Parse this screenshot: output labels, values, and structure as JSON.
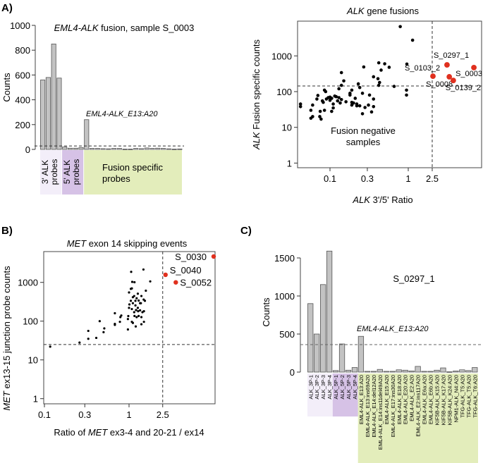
{
  "panels": {
    "a": "A)",
    "b": "B)",
    "c": "C)"
  },
  "colors": {
    "bar": "#c3c3c3",
    "bar_stroke": "#555555",
    "point": "#000000",
    "highlight": "#e0301e",
    "three_prime_block": "#f3eef9",
    "five_prime_block": "#d6c2e6",
    "fusion_block": "#e3edbb"
  },
  "chart_data": [
    {
      "id": "A_left",
      "type": "bar",
      "title_italic": "EML4-ALK",
      "title_rest": " fusion, sample S_0003",
      "ylabel": "Counts",
      "ylim": [
        0,
        1000
      ],
      "yticks": [
        0,
        200,
        400,
        600,
        800,
        1000
      ],
      "threshold": 28,
      "annotation": "EML4-ALK_E13:A20",
      "groups": [
        {
          "label_italic": "3' ALK",
          "label2": "probes",
          "count": 4
        },
        {
          "label_italic": "5' ALK",
          "label2": "probes",
          "count": 4
        },
        {
          "label1": "Fusion specific",
          "label2": "probes",
          "count": 18
        }
      ],
      "values": [
        560,
        580,
        850,
        575,
        20,
        10,
        10,
        15,
        240,
        8,
        8,
        6,
        5,
        8,
        8,
        3,
        3,
        8,
        6,
        12,
        8,
        10,
        8,
        5,
        3,
        4
      ]
    },
    {
      "id": "A_right",
      "type": "scatter",
      "title_italic": "ALK",
      "title_rest": " gene fusions",
      "xlabel_italic": "ALK",
      "xlabel_rest": " 3'/5' Ratio",
      "ylabel_italic": "ALK",
      "ylabel_rest": " Fusion specific counts",
      "xscale": "log",
      "yscale": "log",
      "xticks": [
        0.1,
        0.3,
        1,
        2.5
      ],
      "xtick_labels": [
        "0.1",
        "0.3",
        "1",
        "2.5"
      ],
      "yticks": [
        1,
        10,
        100,
        1000
      ],
      "ytick_labels": [
        "1",
        "10",
        "100",
        "1000"
      ],
      "xlim": [
        0.039,
        16.5
      ],
      "ylim": [
        0.7,
        9300
      ],
      "threshold_x": 2.5,
      "threshold_y": 144,
      "annotation_lines": [
        "Fusion negative",
        "samples"
      ],
      "highlighted": [
        {
          "label": "S_0103_2",
          "x": 2.57,
          "y": 270
        },
        {
          "label": "S_0297_1",
          "x": 4.4,
          "y": 560
        },
        {
          "label": "S_0008",
          "x": 4.8,
          "y": 260
        },
        {
          "label": "S_0139_2",
          "x": 5.6,
          "y": 205
        },
        {
          "label": "S_0003",
          "x": 12.3,
          "y": 470
        }
      ],
      "points": [
        [
          0.79,
          6600
        ],
        [
          1.18,
          2750
        ],
        [
          0.96,
          590
        ],
        [
          0.95,
          110
        ],
        [
          0.95,
          80
        ],
        [
          0.66,
          140
        ],
        [
          0.42,
          640
        ],
        [
          0.5,
          600
        ],
        [
          0.57,
          480
        ],
        [
          0.45,
          400
        ],
        [
          0.27,
          490
        ],
        [
          0.36,
          260
        ],
        [
          0.41,
          230
        ],
        [
          0.43,
          180
        ],
        [
          0.42,
          150
        ],
        [
          0.14,
          340
        ],
        [
          0.15,
          200
        ],
        [
          0.14,
          150
        ],
        [
          0.13,
          120
        ],
        [
          0.23,
          165
        ],
        [
          0.24,
          130
        ],
        [
          0.19,
          110
        ],
        [
          0.18,
          90
        ],
        [
          0.18,
          80
        ],
        [
          0.26,
          90
        ],
        [
          0.32,
          80
        ],
        [
          0.21,
          65
        ],
        [
          0.36,
          62
        ],
        [
          0.36,
          38
        ],
        [
          0.34,
          27
        ],
        [
          0.26,
          24
        ],
        [
          0.28,
          36
        ],
        [
          0.24,
          40
        ],
        [
          0.22,
          45
        ],
        [
          0.19,
          42
        ],
        [
          0.19,
          50
        ],
        [
          0.16,
          52
        ],
        [
          0.14,
          60
        ],
        [
          0.13,
          68
        ],
        [
          0.12,
          72
        ],
        [
          0.115,
          75
        ],
        [
          0.105,
          65
        ],
        [
          0.1,
          70
        ],
        [
          0.095,
          68
        ],
        [
          0.09,
          62
        ],
        [
          0.085,
          110
        ],
        [
          0.088,
          100
        ],
        [
          0.08,
          55
        ],
        [
          0.082,
          50
        ],
        [
          0.07,
          78
        ],
        [
          0.068,
          62
        ],
        [
          0.06,
          42
        ],
        [
          0.057,
          30
        ],
        [
          0.075,
          28
        ],
        [
          0.074,
          20
        ],
        [
          0.077,
          17
        ],
        [
          0.06,
          20
        ],
        [
          0.057,
          18
        ],
        [
          0.042,
          45
        ],
        [
          0.042,
          38
        ],
        [
          0.11,
          45
        ],
        [
          0.11,
          35
        ],
        [
          0.105,
          28
        ],
        [
          0.125,
          55
        ],
        [
          0.1,
          57
        ],
        [
          0.135,
          48
        ],
        [
          0.085,
          30
        ],
        [
          0.2,
          48
        ],
        [
          0.22,
          40
        ],
        [
          0.31,
          42
        ]
      ]
    },
    {
      "id": "B",
      "type": "scatter",
      "title_italic": "MET",
      "title_rest": " exon 14 skipping events",
      "xlabel_pre": "Ratio of ",
      "xlabel_italic": "MET",
      "xlabel_rest": " ex3-4 and 20-21 / ex14",
      "ylabel_italic": "MET",
      "ylabel_rest": " ex13-15 junction probe counts",
      "xscale": "log",
      "yscale": "log",
      "xticks": [
        0.1,
        0.3,
        1,
        2.5
      ],
      "xtick_labels": [
        "0.1",
        "0.3",
        "1",
        "2.5"
      ],
      "yticks": [
        1,
        10,
        100,
        1000
      ],
      "ytick_labels": [
        "1",
        "10",
        "100",
        "1000"
      ],
      "xlim": [
        0.098,
        10.4
      ],
      "ylim": [
        0.74,
        6200
      ],
      "threshold_x": 2.5,
      "threshold_y": 25,
      "highlighted": [
        {
          "label": "S_0030",
          "x": 10,
          "y": 4650
        },
        {
          "label": "S_0040",
          "x": 2.7,
          "y": 1570
        },
        {
          "label": "S_0052",
          "x": 3.57,
          "y": 1000
        }
      ],
      "points": [
        [
          0.117,
          22
        ],
        [
          0.26,
          28
        ],
        [
          0.33,
          56
        ],
        [
          0.33,
          35
        ],
        [
          0.41,
          37
        ],
        [
          0.45,
          100
        ],
        [
          0.51,
          65
        ],
        [
          0.5,
          52
        ],
        [
          0.68,
          160
        ],
        [
          0.68,
          85
        ],
        [
          0.68,
          80
        ],
        [
          0.79,
          127
        ],
        [
          0.81,
          140
        ],
        [
          0.78,
          96
        ],
        [
          0.97,
          61
        ],
        [
          0.97,
          113
        ],
        [
          0.98,
          135
        ],
        [
          1.06,
          1870
        ],
        [
          1.08,
          700
        ],
        [
          1.05,
          680
        ],
        [
          1.09,
          1030
        ],
        [
          1.16,
          1010
        ],
        [
          1.48,
          2150
        ],
        [
          1.78,
          1060
        ],
        [
          1.58,
          610
        ],
        [
          1.0,
          550
        ],
        [
          1.08,
          96
        ],
        [
          1.2,
          73
        ],
        [
          1.4,
          83
        ],
        [
          1.11,
          90
        ],
        [
          1.15,
          445
        ],
        [
          1.23,
          390
        ],
        [
          1.3,
          340
        ],
        [
          1.4,
          445
        ],
        [
          1.49,
          360
        ],
        [
          1.11,
          290
        ],
        [
          1.19,
          255
        ],
        [
          1.27,
          220
        ],
        [
          1.35,
          190
        ],
        [
          1.44,
          170
        ],
        [
          1.5,
          180
        ],
        [
          1.08,
          205
        ],
        [
          1.15,
          170
        ],
        [
          1.23,
          127
        ],
        [
          1.3,
          136
        ],
        [
          1.4,
          127
        ],
        [
          1.19,
          335
        ],
        [
          1.27,
          510
        ],
        [
          1.35,
          290
        ],
        [
          1.54,
          335
        ],
        [
          1.05,
          335
        ],
        [
          1.11,
          415
        ],
        [
          1.21,
          193
        ],
        [
          1.28,
          180
        ],
        [
          1.38,
          290
        ],
        [
          1.01,
          270
        ],
        [
          1.5,
          96
        ],
        [
          1.16,
          136
        ],
        [
          1.0,
          220
        ]
      ]
    },
    {
      "id": "C",
      "type": "bar",
      "title": "S_0297_1",
      "ylabel": "Counts",
      "ylim": [
        0,
        1500
      ],
      "yticks": [
        0,
        500,
        1000,
        1500
      ],
      "threshold": 361,
      "annotation": "EML4-ALK_E13:A20",
      "group_counts": [
        4,
        4,
        19
      ],
      "categories": [
        "ALK_3P-1",
        "ALK_3P-2",
        "ALK_3P-3",
        "ALK_3P-4",
        "ALK_5P-1",
        "ALK_5P-2",
        "ALK_5P-3",
        "ALK_5P-4",
        "EML4-ALK_E13:A20",
        "EML4-ALK_E13:ins69A20",
        "EML4-ALK_E14:del12A20",
        "EML4-ALK_E14:ins11del49A20",
        "EML4-ALK_E15:A20",
        "EML4-ALK_E17:ins30A20",
        "EML4-ALK_E18:A20",
        "EML4-ALK_E20:A20",
        "EML4-ALK_E2:A20",
        "EML4-ALK_E2:ins117A20",
        "EML4-ALK_E6a:A20",
        "EML4-ALK_E6b:A20",
        "KIF5B-ALK_K15:A20",
        "KIF5B-ALK_K17:A20",
        "KIF5B-ALK_K24:A20",
        "NPM1-ALK_N4:A20",
        "TFG-ALK_T5:A20",
        "TFG-ALK_T5:A20",
        "TFG-ALK_T6:A20"
      ],
      "values": [
        900,
        500,
        1150,
        1590,
        20,
        370,
        25,
        60,
        470,
        10,
        10,
        35,
        10,
        10,
        30,
        25,
        15,
        75,
        10,
        10,
        25,
        55,
        5,
        15,
        30,
        20,
        60
      ]
    }
  ]
}
